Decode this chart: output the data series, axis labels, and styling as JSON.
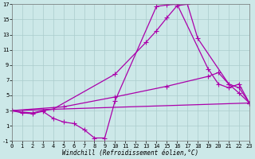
{
  "xlabel": "Windchill (Refroidissement éolien,°C)",
  "ylabel": "",
  "background_color": "#cce8e8",
  "grid_color": "#aacccc",
  "line_color": "#aa00aa",
  "marker": "+",
  "markersize": 4,
  "linewidth": 0.9,
  "xlim": [
    0,
    23
  ],
  "ylim": [
    -1,
    17
  ],
  "xticks": [
    0,
    1,
    2,
    3,
    4,
    5,
    6,
    7,
    8,
    9,
    10,
    11,
    12,
    13,
    14,
    15,
    16,
    17,
    18,
    19,
    20,
    21,
    22,
    23
  ],
  "yticks": [
    -1,
    1,
    3,
    5,
    7,
    9,
    11,
    13,
    15,
    17
  ],
  "tick_fontsize": 5,
  "xlabel_fontsize": 5.5,
  "curves": [
    [
      0,
      3,
      1,
      2.8,
      2,
      2.7,
      3,
      3.0,
      4,
      3.2,
      10,
      7.8,
      13,
      12.0,
      14,
      13.5,
      15,
      15.2,
      16,
      16.8,
      17,
      17.0,
      18,
      12.5,
      21,
      6.5,
      22,
      5.3,
      23,
      4.0
    ],
    [
      0,
      3,
      1,
      2.7,
      2,
      2.6,
      3,
      2.9,
      4,
      2.0,
      5,
      1.5,
      6,
      1.3,
      7,
      0.5,
      8,
      -0.6,
      9,
      -0.6,
      10,
      4.3,
      14,
      16.7,
      15,
      16.9,
      16,
      17.0,
      19,
      8.5,
      20,
      6.5,
      21,
      6.0,
      22,
      6.5,
      23,
      4.0
    ],
    [
      0,
      3,
      23,
      4.0
    ],
    [
      0,
      3,
      5,
      3.5,
      10,
      4.8,
      15,
      6.2,
      19,
      7.5,
      20,
      8.0,
      21,
      6.5,
      22,
      6.0,
      23,
      4.0
    ]
  ]
}
